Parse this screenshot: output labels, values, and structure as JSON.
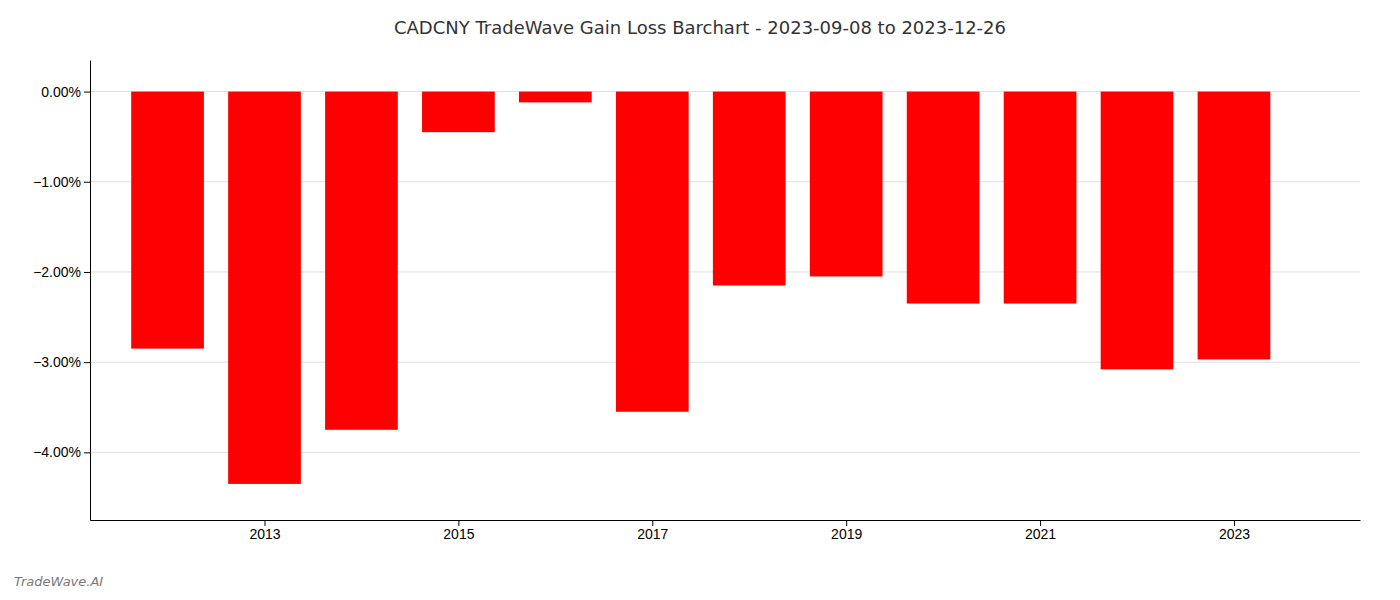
{
  "chart_data": {
    "type": "bar",
    "title": "CADCNY TradeWave Gain Loss Barchart - 2023-09-08 to 2023-12-26",
    "annotations": [
      "TradeWave.AI"
    ],
    "x": [
      2012,
      2013,
      2014,
      2015,
      2016,
      2017,
      2018,
      2019,
      2020,
      2021,
      2022,
      2023
    ],
    "values": [
      -2.85,
      -4.35,
      -3.75,
      -0.45,
      -0.12,
      -3.55,
      -2.15,
      -2.05,
      -2.35,
      -2.35,
      -3.08,
      -2.97
    ],
    "color": "#ff0000",
    "xlim": [
      2011.2,
      2024.3
    ],
    "xticks": [
      2013,
      2015,
      2017,
      2019,
      2021,
      2023
    ],
    "ylim": [
      -4.75,
      0.35
    ],
    "yticks": [
      {
        "value": 0.0,
        "label": "0.00%"
      },
      {
        "value": -1.0,
        "label": "−1.00%"
      },
      {
        "value": -2.0,
        "label": "−2.00%"
      },
      {
        "value": -3.0,
        "label": "−3.00%"
      },
      {
        "value": -4.0,
        "label": "−4.00%"
      }
    ],
    "grid": true
  }
}
